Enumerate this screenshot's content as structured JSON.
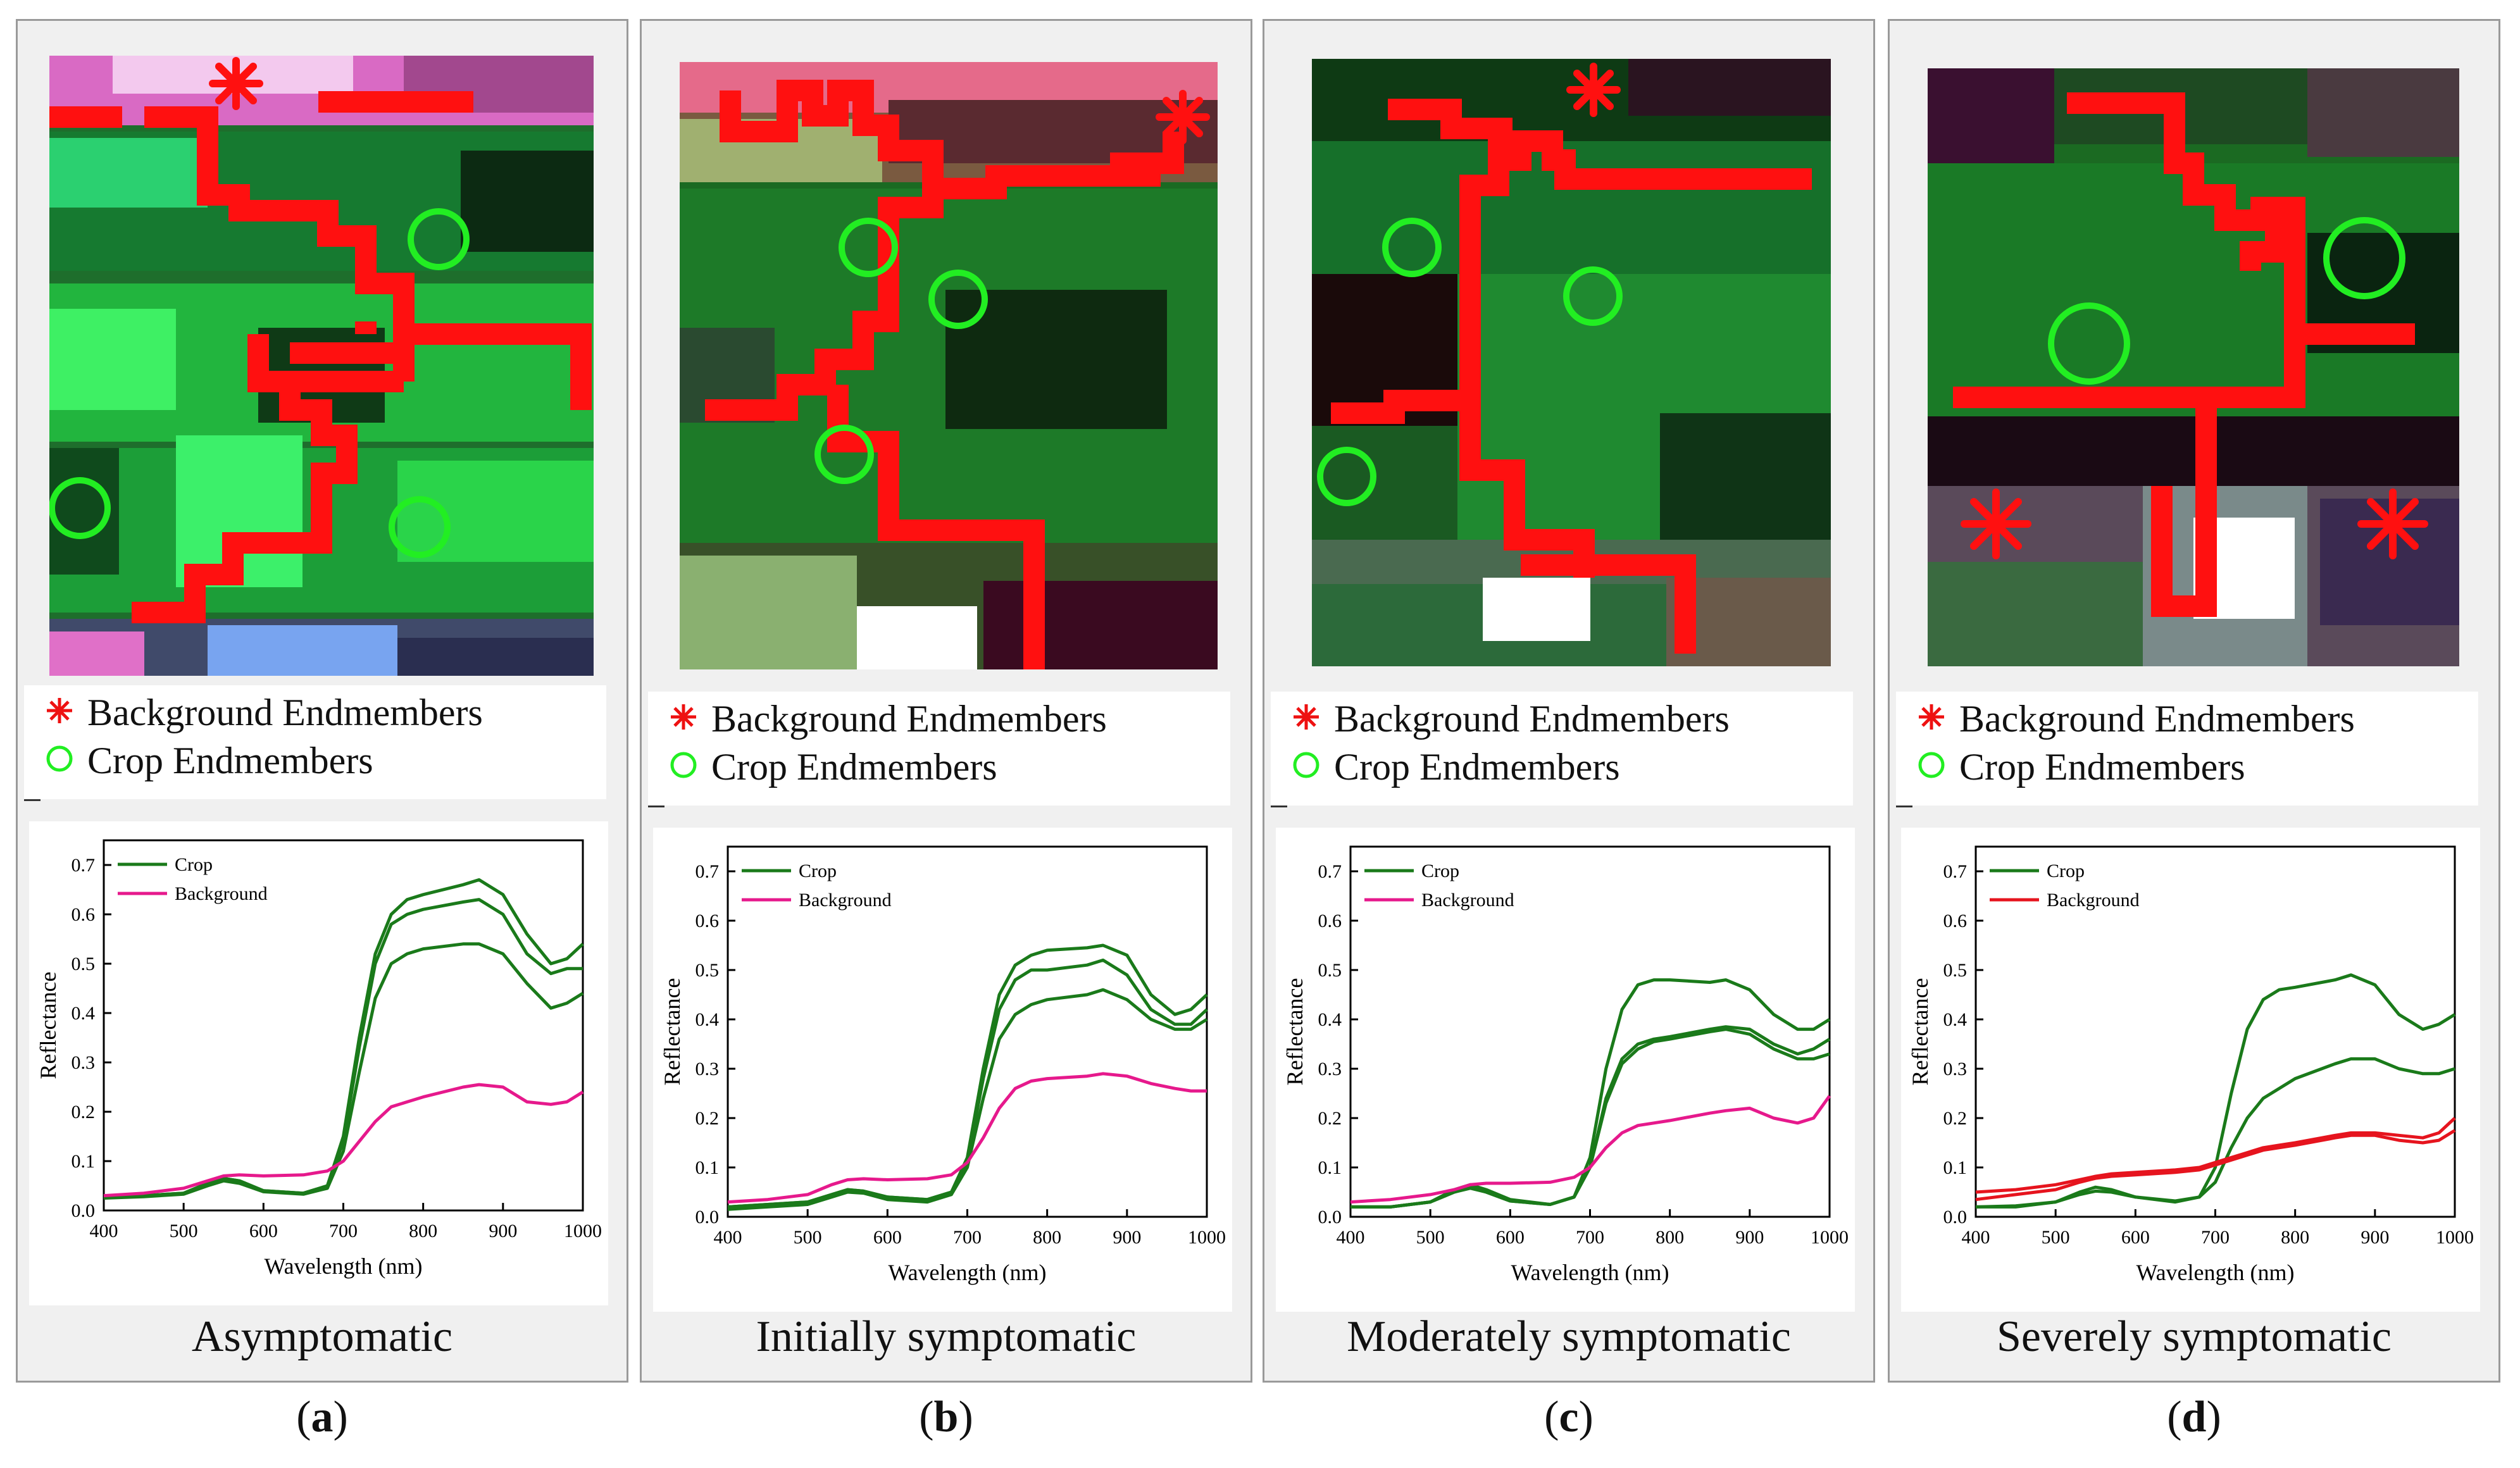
{
  "legend": {
    "background_label": "Background Endmembers",
    "crop_label": "Crop Endmembers"
  },
  "colors": {
    "crop": "#1a7a1a",
    "background_pink": "#e6198c",
    "background_red": "#e6141e",
    "marker_red": "#ee1111",
    "marker_green": "#22ee22"
  },
  "panels": [
    {
      "caption": "Asymptomatic",
      "label_letter": "a"
    },
    {
      "caption": "Initially symptomatic",
      "label_letter": "b"
    },
    {
      "caption": "Moderately symptomatic",
      "label_letter": "c"
    },
    {
      "caption": "Severely symptomatic",
      "label_letter": "d"
    }
  ],
  "chart_data": [
    {
      "type": "line",
      "xlabel": "Wavelength (nm)",
      "ylabel": "Reflectance",
      "xlim": [
        400,
        1000
      ],
      "ylim": [
        0,
        0.75
      ],
      "xticks": [
        400,
        500,
        600,
        700,
        800,
        900,
        1000
      ],
      "yticks": [
        0.0,
        0.1,
        0.2,
        0.3,
        0.4,
        0.5,
        0.6,
        0.7
      ],
      "x": [
        400,
        450,
        500,
        530,
        550,
        570,
        600,
        650,
        680,
        700,
        720,
        740,
        760,
        780,
        800,
        850,
        870,
        900,
        930,
        960,
        980,
        1000
      ],
      "series": [
        {
          "name": "Crop",
          "color": "#1a7a1a",
          "values": [
            0.03,
            0.03,
            0.035,
            0.055,
            0.065,
            0.06,
            0.04,
            0.035,
            0.05,
            0.15,
            0.35,
            0.52,
            0.6,
            0.63,
            0.64,
            0.66,
            0.67,
            0.64,
            0.56,
            0.5,
            0.51,
            0.54
          ]
        },
        {
          "name": "Crop",
          "color": "#1a7a1a",
          "values": [
            0.03,
            0.03,
            0.035,
            0.055,
            0.065,
            0.06,
            0.04,
            0.035,
            0.05,
            0.14,
            0.33,
            0.5,
            0.58,
            0.6,
            0.61,
            0.625,
            0.63,
            0.6,
            0.52,
            0.48,
            0.49,
            0.49
          ]
        },
        {
          "name": "Crop",
          "color": "#1a7a1a",
          "values": [
            0.025,
            0.028,
            0.033,
            0.05,
            0.06,
            0.055,
            0.038,
            0.033,
            0.045,
            0.12,
            0.28,
            0.43,
            0.5,
            0.52,
            0.53,
            0.54,
            0.54,
            0.52,
            0.46,
            0.41,
            0.42,
            0.44
          ]
        },
        {
          "name": "Background",
          "color": "#e6198c",
          "values": [
            0.03,
            0.035,
            0.045,
            0.06,
            0.07,
            0.072,
            0.07,
            0.072,
            0.08,
            0.1,
            0.14,
            0.18,
            0.21,
            0.22,
            0.23,
            0.25,
            0.255,
            0.25,
            0.22,
            0.215,
            0.22,
            0.24
          ]
        }
      ]
    },
    {
      "type": "line",
      "xlabel": "Wavelength (nm)",
      "ylabel": "Reflectance",
      "xlim": [
        400,
        1000
      ],
      "ylim": [
        0,
        0.75
      ],
      "xticks": [
        400,
        500,
        600,
        700,
        800,
        900,
        1000
      ],
      "yticks": [
        0.0,
        0.1,
        0.2,
        0.3,
        0.4,
        0.5,
        0.6,
        0.7
      ],
      "x": [
        400,
        450,
        500,
        530,
        550,
        570,
        600,
        650,
        680,
        700,
        720,
        740,
        760,
        780,
        800,
        850,
        870,
        900,
        930,
        960,
        980,
        1000
      ],
      "series": [
        {
          "name": "Crop",
          "color": "#1a7a1a",
          "values": [
            0.02,
            0.025,
            0.03,
            0.045,
            0.055,
            0.052,
            0.04,
            0.035,
            0.05,
            0.12,
            0.3,
            0.45,
            0.51,
            0.53,
            0.54,
            0.545,
            0.55,
            0.53,
            0.45,
            0.41,
            0.42,
            0.45
          ]
        },
        {
          "name": "Crop",
          "color": "#1a7a1a",
          "values": [
            0.02,
            0.025,
            0.03,
            0.045,
            0.055,
            0.052,
            0.04,
            0.035,
            0.05,
            0.11,
            0.28,
            0.42,
            0.48,
            0.5,
            0.5,
            0.51,
            0.52,
            0.49,
            0.42,
            0.39,
            0.39,
            0.42
          ]
        },
        {
          "name": "Crop",
          "color": "#1a7a1a",
          "values": [
            0.015,
            0.02,
            0.025,
            0.04,
            0.05,
            0.048,
            0.035,
            0.03,
            0.045,
            0.1,
            0.24,
            0.36,
            0.41,
            0.43,
            0.44,
            0.45,
            0.46,
            0.44,
            0.4,
            0.38,
            0.38,
            0.4
          ]
        },
        {
          "name": "Background",
          "color": "#e6198c",
          "values": [
            0.03,
            0.035,
            0.045,
            0.065,
            0.075,
            0.077,
            0.075,
            0.077,
            0.085,
            0.11,
            0.16,
            0.22,
            0.26,
            0.275,
            0.28,
            0.285,
            0.29,
            0.285,
            0.27,
            0.26,
            0.255,
            0.255
          ]
        }
      ]
    },
    {
      "type": "line",
      "xlabel": "Wavelength (nm)",
      "ylabel": "Reflectance",
      "xlim": [
        400,
        1000
      ],
      "ylim": [
        0,
        0.75
      ],
      "xticks": [
        400,
        500,
        600,
        700,
        800,
        900,
        1000
      ],
      "yticks": [
        0.0,
        0.1,
        0.2,
        0.3,
        0.4,
        0.5,
        0.6,
        0.7
      ],
      "x": [
        400,
        450,
        500,
        530,
        550,
        570,
        600,
        650,
        680,
        700,
        720,
        740,
        760,
        780,
        800,
        850,
        870,
        900,
        930,
        960,
        980,
        1000
      ],
      "series": [
        {
          "name": "Crop",
          "color": "#1a7a1a",
          "values": [
            0.02,
            0.02,
            0.03,
            0.055,
            0.065,
            0.055,
            0.035,
            0.025,
            0.04,
            0.12,
            0.3,
            0.42,
            0.47,
            0.48,
            0.48,
            0.475,
            0.48,
            0.46,
            0.41,
            0.38,
            0.38,
            0.4
          ]
        },
        {
          "name": "Crop",
          "color": "#1a7a1a",
          "values": [
            0.02,
            0.02,
            0.03,
            0.05,
            0.06,
            0.05,
            0.032,
            0.025,
            0.04,
            0.1,
            0.24,
            0.32,
            0.35,
            0.36,
            0.365,
            0.38,
            0.385,
            0.38,
            0.35,
            0.33,
            0.34,
            0.36
          ]
        },
        {
          "name": "Crop",
          "color": "#1a7a1a",
          "values": [
            0.02,
            0.02,
            0.03,
            0.05,
            0.058,
            0.05,
            0.032,
            0.025,
            0.04,
            0.1,
            0.23,
            0.31,
            0.34,
            0.355,
            0.36,
            0.375,
            0.38,
            0.37,
            0.34,
            0.32,
            0.32,
            0.33
          ]
        },
        {
          "name": "Background",
          "color": "#e6198c",
          "values": [
            0.03,
            0.035,
            0.045,
            0.055,
            0.065,
            0.068,
            0.068,
            0.07,
            0.08,
            0.1,
            0.14,
            0.17,
            0.185,
            0.19,
            0.195,
            0.21,
            0.215,
            0.22,
            0.2,
            0.19,
            0.2,
            0.245
          ]
        }
      ]
    },
    {
      "type": "line",
      "xlabel": "Wavelength (nm)",
      "ylabel": "Reflectance",
      "xlim": [
        400,
        1000
      ],
      "ylim": [
        0,
        0.75
      ],
      "xticks": [
        400,
        500,
        600,
        700,
        800,
        900,
        1000
      ],
      "yticks": [
        0.0,
        0.1,
        0.2,
        0.3,
        0.4,
        0.5,
        0.6,
        0.7
      ],
      "x": [
        400,
        450,
        500,
        530,
        550,
        570,
        600,
        650,
        680,
        700,
        720,
        740,
        760,
        780,
        800,
        850,
        870,
        900,
        930,
        960,
        980,
        1000
      ],
      "series": [
        {
          "name": "Crop",
          "color": "#1a7a1a",
          "values": [
            0.02,
            0.02,
            0.03,
            0.05,
            0.06,
            0.055,
            0.04,
            0.03,
            0.04,
            0.1,
            0.25,
            0.38,
            0.44,
            0.46,
            0.465,
            0.48,
            0.49,
            0.47,
            0.41,
            0.38,
            0.39,
            0.41
          ]
        },
        {
          "name": "Crop",
          "color": "#1a7a1a",
          "values": [
            0.02,
            0.022,
            0.03,
            0.045,
            0.052,
            0.05,
            0.04,
            0.032,
            0.04,
            0.07,
            0.14,
            0.2,
            0.24,
            0.26,
            0.28,
            0.31,
            0.32,
            0.32,
            0.3,
            0.29,
            0.29,
            0.3
          ]
        },
        {
          "name": "Background",
          "color": "#e6141e",
          "values": [
            0.05,
            0.055,
            0.065,
            0.075,
            0.082,
            0.087,
            0.09,
            0.095,
            0.1,
            0.11,
            0.12,
            0.13,
            0.14,
            0.145,
            0.15,
            0.165,
            0.17,
            0.17,
            0.165,
            0.16,
            0.17,
            0.2
          ]
        },
        {
          "name": "Background",
          "color": "#e6141e",
          "values": [
            0.035,
            0.045,
            0.055,
            0.07,
            0.078,
            0.082,
            0.085,
            0.09,
            0.095,
            0.105,
            0.115,
            0.125,
            0.135,
            0.14,
            0.145,
            0.16,
            0.165,
            0.165,
            0.155,
            0.15,
            0.155,
            0.175
          ]
        }
      ]
    }
  ]
}
